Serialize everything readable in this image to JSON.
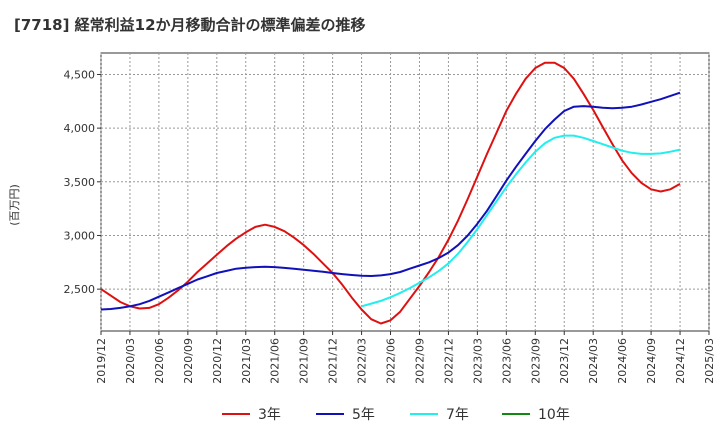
{
  "chart_data": {
    "type": "line",
    "title": "[7718]  経常利益12か月移動合計の標準偏差の推移",
    "ylabel": "(百万円)",
    "xlabel": "",
    "ylim": [
      2110,
      4700
    ],
    "yticks": [
      2500,
      3000,
      3500,
      4000,
      4500
    ],
    "ytick_labels": [
      "2,500",
      "3,000",
      "3,500",
      "4,000",
      "4,500"
    ],
    "x_ticks": [
      "2019/12",
      "2020/03",
      "2020/06",
      "2020/09",
      "2020/12",
      "2021/03",
      "2021/06",
      "2021/09",
      "2021/12",
      "2022/03",
      "2022/06",
      "2022/09",
      "2022/12",
      "2023/03",
      "2023/06",
      "2023/09",
      "2023/12",
      "2024/03",
      "2024/06",
      "2024/09",
      "2024/12",
      "2025/03"
    ],
    "grid": true,
    "legend_position": "bottom",
    "series": [
      {
        "name": "3年",
        "color": "#dd1111",
        "x": [
          "2019/12",
          "2020/01",
          "2020/02",
          "2020/03",
          "2020/04",
          "2020/05",
          "2020/06",
          "2020/07",
          "2020/08",
          "2020/09",
          "2020/10",
          "2020/11",
          "2020/12",
          "2021/01",
          "2021/02",
          "2021/03",
          "2021/04",
          "2021/05",
          "2021/06",
          "2021/07",
          "2021/08",
          "2021/09",
          "2021/10",
          "2021/11",
          "2021/12",
          "2022/01",
          "2022/02",
          "2022/03",
          "2022/04",
          "2022/05",
          "2022/06",
          "2022/07",
          "2022/08",
          "2022/09",
          "2022/10",
          "2022/11",
          "2022/12",
          "2023/01",
          "2023/02",
          "2023/03",
          "2023/04",
          "2023/05",
          "2023/06",
          "2023/07",
          "2023/08",
          "2023/09",
          "2023/10",
          "2023/11",
          "2023/12",
          "2024/01",
          "2024/02",
          "2024/03",
          "2024/04",
          "2024/05",
          "2024/06",
          "2024/07",
          "2024/08",
          "2024/09",
          "2024/10",
          "2024/11",
          "2024/12"
        ],
        "values": [
          2500,
          2440,
          2380,
          2340,
          2320,
          2325,
          2360,
          2420,
          2490,
          2570,
          2660,
          2740,
          2820,
          2900,
          2970,
          3030,
          3080,
          3100,
          3080,
          3040,
          2980,
          2910,
          2830,
          2740,
          2650,
          2540,
          2420,
          2310,
          2220,
          2180,
          2210,
          2290,
          2410,
          2530,
          2660,
          2800,
          2960,
          3140,
          3340,
          3550,
          3760,
          3960,
          4160,
          4320,
          4460,
          4560,
          4610,
          4610,
          4560,
          4460,
          4320,
          4170,
          4010,
          3850,
          3700,
          3580,
          3490,
          3430,
          3410,
          3430,
          3480
        ]
      },
      {
        "name": "5年",
        "color": "#1111bb",
        "x": [
          "2019/12",
          "2020/01",
          "2020/02",
          "2020/03",
          "2020/04",
          "2020/05",
          "2020/06",
          "2020/07",
          "2020/08",
          "2020/09",
          "2020/10",
          "2020/11",
          "2020/12",
          "2021/01",
          "2021/02",
          "2021/03",
          "2021/04",
          "2021/05",
          "2021/06",
          "2021/07",
          "2021/08",
          "2021/09",
          "2021/10",
          "2021/11",
          "2021/12",
          "2022/01",
          "2022/02",
          "2022/03",
          "2022/04",
          "2022/05",
          "2022/06",
          "2022/07",
          "2022/08",
          "2022/09",
          "2022/10",
          "2022/11",
          "2022/12",
          "2023/01",
          "2023/02",
          "2023/03",
          "2023/04",
          "2023/05",
          "2023/06",
          "2023/07",
          "2023/08",
          "2023/09",
          "2023/10",
          "2023/11",
          "2023/12",
          "2024/01",
          "2024/02",
          "2024/03",
          "2024/04",
          "2024/05",
          "2024/06",
          "2024/07",
          "2024/08",
          "2024/09",
          "2024/10",
          "2024/11",
          "2024/12"
        ],
        "values": [
          2310,
          2315,
          2325,
          2340,
          2360,
          2390,
          2430,
          2470,
          2510,
          2550,
          2590,
          2620,
          2650,
          2670,
          2690,
          2700,
          2705,
          2708,
          2705,
          2698,
          2690,
          2680,
          2672,
          2662,
          2650,
          2640,
          2632,
          2625,
          2622,
          2628,
          2640,
          2660,
          2690,
          2720,
          2750,
          2790,
          2840,
          2910,
          3000,
          3110,
          3230,
          3370,
          3510,
          3640,
          3760,
          3880,
          3990,
          4080,
          4160,
          4200,
          4205,
          4200,
          4190,
          4185,
          4190,
          4200,
          4220,
          4245,
          4270,
          4300,
          4330
        ]
      },
      {
        "name": "7年",
        "color": "#22eeee",
        "x": [
          "2022/03",
          "2022/04",
          "2022/05",
          "2022/06",
          "2022/07",
          "2022/08",
          "2022/09",
          "2022/10",
          "2022/11",
          "2022/12",
          "2023/01",
          "2023/02",
          "2023/03",
          "2023/04",
          "2023/05",
          "2023/06",
          "2023/07",
          "2023/08",
          "2023/09",
          "2023/10",
          "2023/11",
          "2023/12",
          "2024/01",
          "2024/02",
          "2024/03",
          "2024/04",
          "2024/05",
          "2024/06",
          "2024/07",
          "2024/08",
          "2024/09",
          "2024/10",
          "2024/11",
          "2024/12"
        ],
        "values": [
          2340,
          2365,
          2390,
          2425,
          2465,
          2510,
          2560,
          2610,
          2670,
          2740,
          2830,
          2940,
          3060,
          3190,
          3320,
          3450,
          3570,
          3680,
          3780,
          3860,
          3910,
          3930,
          3930,
          3910,
          3880,
          3850,
          3820,
          3790,
          3770,
          3760,
          3760,
          3765,
          3780,
          3800
        ]
      },
      {
        "name": "10年",
        "color": "#118811",
        "x": [],
        "values": []
      }
    ]
  }
}
